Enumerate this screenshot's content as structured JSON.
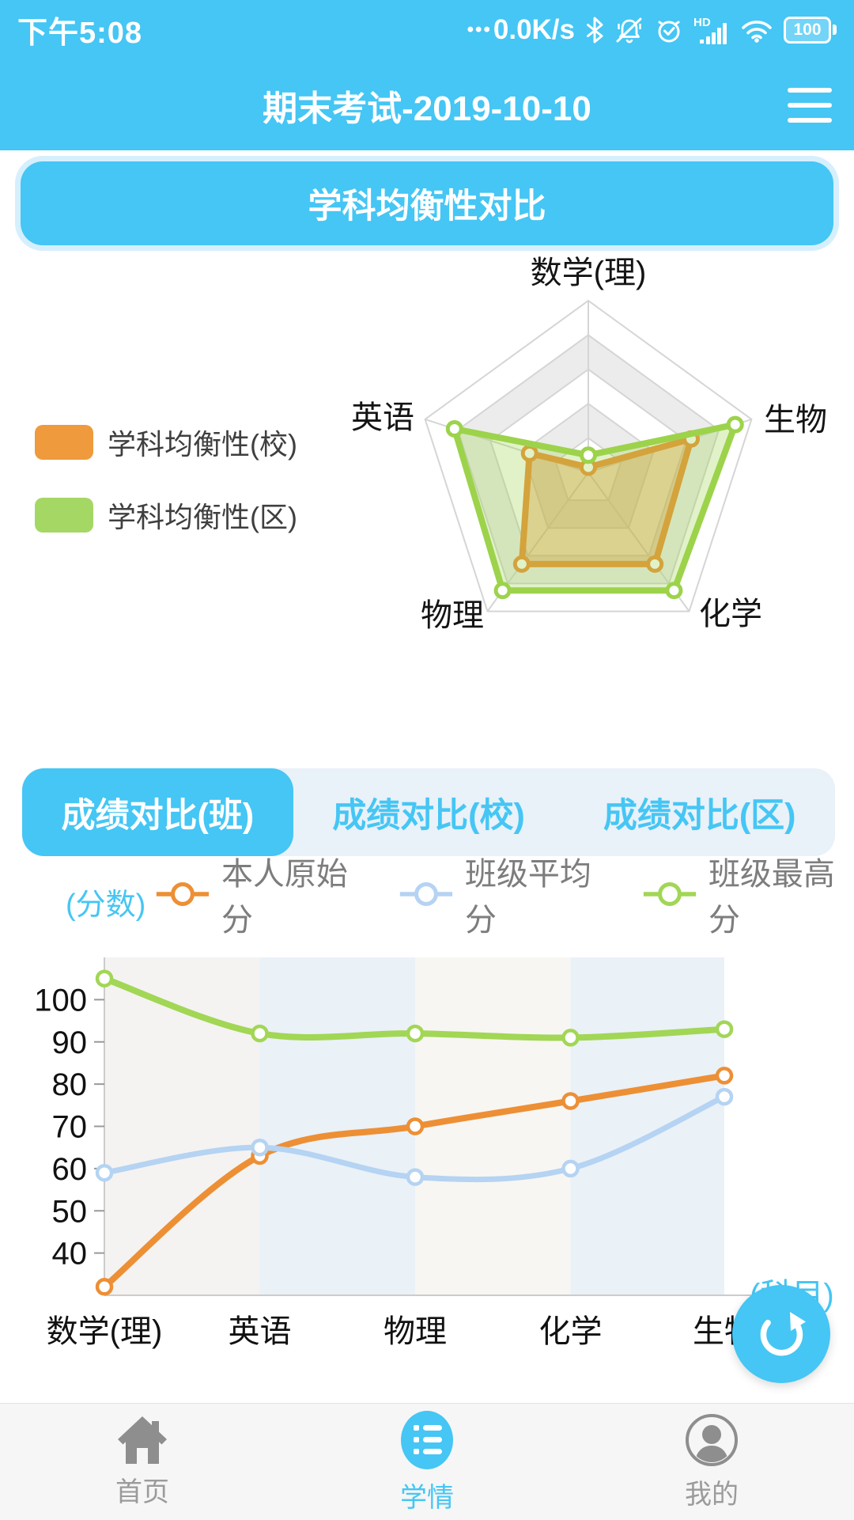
{
  "colors": {
    "primary": "#45C6F4",
    "tab_bg": "#E9F1F9",
    "nav_bg": "#F6F6F6",
    "orange": "#ED8F35",
    "green": "#9CD34B",
    "light_blue_line": "#B5D3F2"
  },
  "status_bar": {
    "time": "下午5:08",
    "net_speed_dots": "•••",
    "net_speed": "0.0K/s",
    "battery_level": "100",
    "icons": [
      "bluetooth-icon",
      "bell-muted-icon",
      "alarm-icon",
      "hd-signal-icon",
      "wifi-icon",
      "battery-icon"
    ]
  },
  "header": {
    "title": "期末考试-2019-10-10"
  },
  "balance_button": {
    "label": "学科均衡性对比"
  },
  "radar_legend": {
    "items": [
      {
        "label": "学科均衡性(校)",
        "color": "#EE9A3D"
      },
      {
        "label": "学科均衡性(区)",
        "color": "#A5D765"
      }
    ]
  },
  "tabs": {
    "items": [
      {
        "label": "成绩对比(班)",
        "active": true
      },
      {
        "label": "成绩对比(校)",
        "active": false
      },
      {
        "label": "成绩对比(区)",
        "active": false
      }
    ]
  },
  "line_legend": {
    "unit_label": "(分数)",
    "items": [
      {
        "label": "本人原始分",
        "color": "#ED8F35"
      },
      {
        "label": "班级平均分",
        "color": "#B5D3F2"
      },
      {
        "label": "班级最高分",
        "color": "#A2D655"
      }
    ]
  },
  "fab": {
    "icon": "refresh-icon"
  },
  "bottom_nav": {
    "items": [
      {
        "label": "首页",
        "icon": "home-icon",
        "active": false
      },
      {
        "label": "学情",
        "icon": "list-icon",
        "active": true
      },
      {
        "label": "我的",
        "icon": "person-icon",
        "active": false
      }
    ]
  },
  "chart_data": [
    {
      "type": "radar",
      "indicators": [
        "数学(理)",
        "生物",
        "化学",
        "物理",
        "英语"
      ],
      "max": 100,
      "levels": 5,
      "legend_position": "left",
      "series": [
        {
          "name": "学科均衡性(校)",
          "color": "#ED8F35",
          "values": [
            3,
            63,
            66,
            66,
            36
          ]
        },
        {
          "name": "学科均衡性(区)",
          "color": "#9CD34B",
          "values": [
            10,
            90,
            85,
            85,
            82
          ]
        }
      ]
    },
    {
      "type": "line",
      "smooth": true,
      "categories": [
        "数学(理)",
        "英语",
        "物理",
        "化学",
        "生物"
      ],
      "series": [
        {
          "name": "本人原始分",
          "color": "#ED8F35",
          "values": [
            32,
            63,
            70,
            76,
            82
          ]
        },
        {
          "name": "班级平均分",
          "color": "#B5D3F2",
          "values": [
            59,
            65,
            58,
            60,
            77
          ]
        },
        {
          "name": "班级最高分",
          "color": "#A2D655",
          "values": [
            105,
            92,
            92,
            91,
            93
          ]
        }
      ],
      "ylabel": "(分数)",
      "xlabel": "(科目)",
      "yticks": [
        40,
        50,
        60,
        70,
        80,
        90,
        100
      ],
      "ylim": [
        30,
        110
      ],
      "grid": false,
      "band_colors": [
        "#F4F3F1",
        "#EAF1F7",
        "#F7F6F3",
        "#EAF1F7"
      ]
    }
  ]
}
